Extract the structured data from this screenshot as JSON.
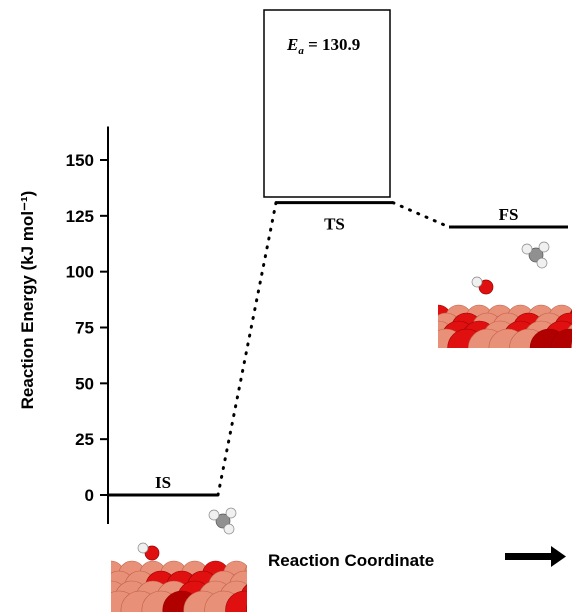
{
  "chart_data": {
    "type": "line",
    "ylabel": "Reaction Energy (kJ mol⁻¹)",
    "xlabel": "Reaction Coordinate",
    "ylim": [
      -13,
      165
    ],
    "yticks": [
      0,
      25,
      50,
      75,
      100,
      125,
      150
    ],
    "categories": [
      "IS",
      "TS",
      "FS"
    ],
    "values": [
      0,
      130.9,
      120
    ],
    "annotation": {
      "symbol": "E",
      "subscript": "a",
      "text": " = 130.9"
    },
    "grid": false,
    "colors": {
      "level": "#000000",
      "oxygen": "#e01010",
      "copper": "#e89078",
      "carbon": "#909090",
      "hydrogen": "#f0f0f0"
    }
  }
}
